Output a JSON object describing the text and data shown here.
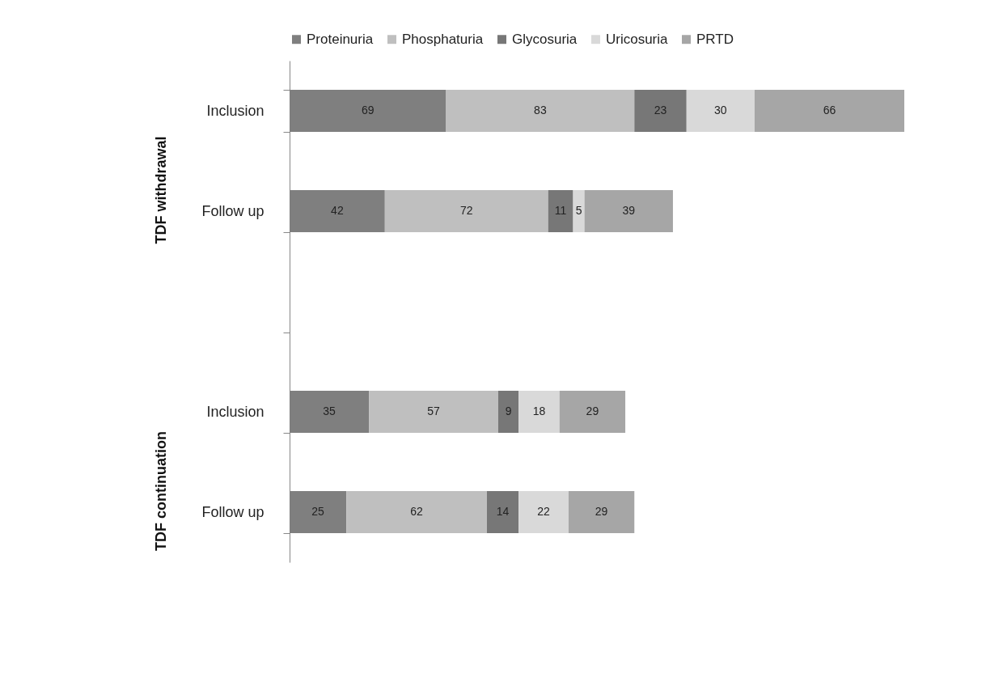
{
  "chart_data": {
    "type": "bar",
    "orientation": "horizontal",
    "stacked": true,
    "data_labels": true,
    "legend": "top",
    "grid": false,
    "categories": [
      "Inclusion",
      "Follow up",
      null,
      "Inclusion",
      "Follow up"
    ],
    "series": [
      {
        "name": "Proteinuria",
        "color": "#7f7f7f",
        "values": [
          69,
          42,
          null,
          35,
          25
        ]
      },
      {
        "name": "Phosphaturia",
        "color": "#bfbfbf",
        "values": [
          83,
          72,
          null,
          57,
          62
        ]
      },
      {
        "name": "Glycosuria",
        "color": "#777777",
        "values": [
          23,
          11,
          null,
          9,
          14
        ]
      },
      {
        "name": "Uricosuria",
        "color": "#d9d9d9",
        "values": [
          30,
          5,
          null,
          18,
          22
        ]
      },
      {
        "name": "PRTD",
        "color": "#a6a6a6",
        "values": [
          66,
          39,
          null,
          29,
          29
        ]
      }
    ],
    "annotations": [
      "TDF withdrawal",
      "TDF continuation"
    ]
  }
}
